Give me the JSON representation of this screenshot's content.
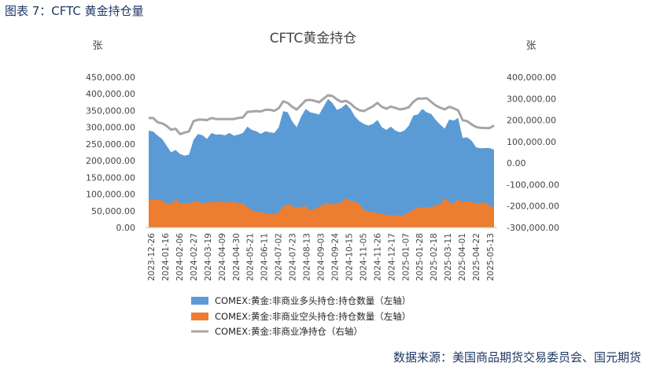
{
  "figure": {
    "caption": "图表 7：CFTC 黄金持仓量",
    "source": "数据来源：美国商品期货交易委员会、国元期货"
  },
  "chart_data": {
    "type": "area",
    "title": "CFTC黄金持仓",
    "ylabel_left": "张",
    "ylabel_right": "张",
    "ylim_left": [
      0,
      450000
    ],
    "yticks_left": [
      "0.00",
      "50,000.00",
      "100,000.00",
      "150,000.00",
      "200,000.00",
      "250,000.00",
      "300,000.00",
      "350,000.00",
      "400,000.00",
      "450,000.00"
    ],
    "ylim_right": [
      -300000,
      400000
    ],
    "yticks_right": [
      "-300,000.00",
      "-200,000.00",
      "-100,000.00",
      "0.00",
      "100,000.00",
      "200,000.00",
      "300,000.00",
      "400,000.00"
    ],
    "x_tick_labels": [
      "2023-12-26",
      "2024-01-16",
      "2024-02-06",
      "2024-02-27",
      "2024-03-19",
      "2024-04-09",
      "2024-04-30",
      "2024-05-21",
      "2024-06-11",
      "2024-07-02",
      "2024-07-23",
      "2024-08-13",
      "2024-09-03",
      "2024-09-24",
      "2024-10-15",
      "2024-11-05",
      "2024-11-26",
      "2024-12-17",
      "2025-01-07",
      "2025-01-28",
      "2025-02-18",
      "2025-03-11",
      "2025-04-01",
      "2025-04-22",
      "2025-05-13"
    ],
    "grid": false,
    "legend_position": "bottom",
    "series": [
      {
        "name": "COMEX:黄金:非商业多头持仓:持仓数量（左轴）",
        "axis": "left",
        "color": "#5b9bd5",
        "kind": "area",
        "values": [
          290000,
          287000,
          275000,
          265000,
          245000,
          225000,
          232000,
          220000,
          215000,
          218000,
          262000,
          280000,
          276000,
          265000,
          283000,
          278000,
          279000,
          276000,
          283000,
          275000,
          278000,
          283000,
          302000,
          292000,
          288000,
          280000,
          288000,
          285000,
          283000,
          300000,
          348000,
          345000,
          318000,
          300000,
          332000,
          355000,
          345000,
          342000,
          338000,
          362000,
          385000,
          372000,
          352000,
          358000,
          370000,
          355000,
          332000,
          318000,
          310000,
          305000,
          310000,
          322000,
          300000,
          292000,
          302000,
          290000,
          285000,
          290000,
          305000,
          335000,
          338000,
          355000,
          345000,
          340000,
          322000,
          308000,
          296000,
          323000,
          320000,
          328000,
          268000,
          270000,
          260000,
          240000,
          237000,
          238000,
          238000,
          233000
        ]
      },
      {
        "name": "COMEX:黄金:非商业空头持仓:持仓数量（左轴）",
        "axis": "left",
        "color": "#ed7d31",
        "kind": "area",
        "values": [
          82000,
          84000,
          83000,
          81000,
          72000,
          70000,
          85000,
          72000,
          74000,
          73000,
          75000,
          80000,
          70000,
          76000,
          76000,
          76000,
          78000,
          76000,
          75000,
          77000,
          72000,
          74000,
          60000,
          52000,
          48000,
          46000,
          42000,
          40000,
          40000,
          46000,
          62000,
          70000,
          65000,
          58000,
          62000,
          64000,
          52000,
          56000,
          60000,
          70000,
          70000,
          70000,
          72000,
          75000,
          88000,
          80000,
          78000,
          70000,
          52000,
          48000,
          46000,
          44000,
          40000,
          39000,
          37000,
          36000,
          36000,
          38000,
          46000,
          52000,
          62000,
          58000,
          60000,
          62000,
          65000,
          70000,
          88000,
          75000,
          72000,
          85000,
          75000,
          78000,
          77000,
          70000,
          74000,
          75000,
          65000,
          60000
        ]
      },
      {
        "name": "COMEX:黄金:非商业净持仓（右轴）",
        "axis": "right",
        "color": "#a5a5a5",
        "kind": "line",
        "values": [
          210000,
          210000,
          190000,
          185000,
          173000,
          155000,
          160000,
          135000,
          142000,
          148000,
          195000,
          202000,
          202000,
          200000,
          210000,
          205000,
          205000,
          205000,
          205000,
          205000,
          210000,
          212000,
          238000,
          240000,
          242000,
          240000,
          248000,
          248000,
          243000,
          256000,
          287000,
          280000,
          262000,
          249000,
          270000,
          292000,
          294000,
          290000,
          283000,
          300000,
          316000,
          312000,
          296000,
          285000,
          290000,
          277000,
          258000,
          246000,
          242000,
          253000,
          264000,
          280000,
          262000,
          253000,
          263000,
          257000,
          250000,
          253000,
          260000,
          285000,
          300000,
          300000,
          302000,
          285000,
          268000,
          258000,
          250000,
          262000,
          255000,
          245000,
          200000,
          195000,
          180000,
          168000,
          164000,
          163000,
          163000,
          175000
        ]
      }
    ]
  }
}
